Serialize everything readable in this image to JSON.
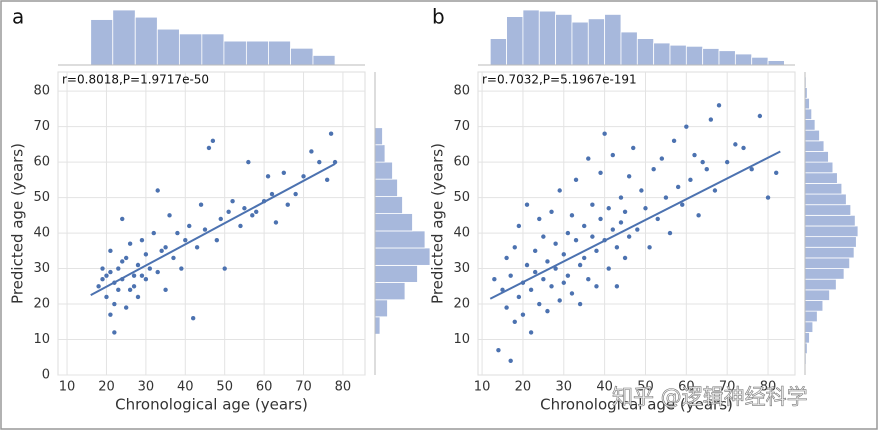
{
  "chart_data": [
    {
      "type": "scatter",
      "panel_label": "a",
      "annotation": "r=0.8018,P=1.9717e-50",
      "x_label": "Chronological age (years)",
      "y_label": "Predicted age (years)",
      "xlim": [
        7.7,
        85.6
      ],
      "ylim": [
        0,
        85.4
      ],
      "xticks": [
        10,
        20,
        30,
        40,
        50,
        60,
        70,
        80
      ],
      "yticks": [
        0,
        10,
        20,
        30,
        40,
        50,
        60,
        70,
        80
      ],
      "grid": true,
      "color": "#4c72b0",
      "x": [
        18,
        19,
        20,
        20,
        21,
        21,
        22,
        22,
        22,
        23,
        23,
        24,
        24,
        25,
        25,
        26,
        26,
        27,
        28,
        28,
        29,
        30,
        30,
        31,
        32,
        33,
        33,
        34,
        35,
        35,
        36,
        37,
        38,
        39,
        40,
        41,
        42,
        43,
        44,
        45,
        46,
        47,
        48,
        49,
        50,
        51,
        52,
        54,
        55,
        56,
        57,
        58,
        60,
        61,
        62,
        63,
        65,
        66,
        68,
        70,
        72,
        74,
        76,
        77,
        78,
        19,
        21,
        24,
        27,
        29
      ],
      "y": [
        25,
        30,
        22,
        28,
        17,
        35,
        26,
        20,
        12,
        30,
        24,
        44,
        27,
        19,
        33,
        24,
        37,
        28,
        31,
        22,
        38,
        27,
        34,
        30,
        40,
        29,
        52,
        35,
        36,
        24,
        45,
        33,
        40,
        30,
        38,
        42,
        16,
        36,
        48,
        41,
        64,
        66,
        38,
        44,
        30,
        46,
        49,
        42,
        47,
        60,
        45,
        46,
        49,
        56,
        51,
        43,
        57,
        48,
        51,
        56,
        63,
        60,
        55,
        68,
        60,
        27,
        29,
        32,
        25,
        28
      ],
      "fit": {
        "x": [
          16,
          78
        ],
        "y": [
          22.5,
          59.5
        ]
      },
      "marginal_x": {
        "bins": [
          16,
          21.6,
          27.3,
          32.9,
          38.5,
          44.2,
          49.8,
          55.5,
          61.1,
          66.7,
          72.4,
          78
        ],
        "counts": [
          38,
          46,
          40,
          30,
          26,
          26,
          20,
          20,
          20,
          14,
          8
        ]
      },
      "marginal_y": {
        "bins": [
          11.5,
          16.4,
          21.2,
          26.1,
          30.9,
          35.8,
          40.6,
          45.5,
          50.3,
          55.2,
          60,
          64.9,
          69.7
        ],
        "counts": [
          4,
          10,
          24,
          34,
          44,
          40,
          30,
          22,
          18,
          14,
          8,
          6
        ]
      }
    },
    {
      "type": "scatter",
      "panel_label": "b",
      "annotation": "r=0.7032,P=5.1967e-191",
      "x_label": "Chronological age (years)",
      "y_label": "Predicted age (years)",
      "xlim": [
        9,
        86.6
      ],
      "ylim": [
        0,
        85.4
      ],
      "xticks": [
        10,
        20,
        30,
        40,
        50,
        60,
        70,
        80
      ],
      "yticks": [
        10,
        20,
        30,
        40,
        50,
        60,
        70,
        80
      ],
      "grid": true,
      "color": "#4c72b0",
      "x": [
        13,
        14,
        15,
        16,
        16,
        17,
        17,
        18,
        18,
        19,
        19,
        20,
        20,
        21,
        21,
        22,
        22,
        23,
        23,
        24,
        24,
        25,
        25,
        26,
        26,
        27,
        27,
        28,
        28,
        29,
        29,
        30,
        30,
        31,
        31,
        32,
        32,
        33,
        33,
        34,
        34,
        35,
        35,
        36,
        36,
        37,
        37,
        38,
        38,
        39,
        39,
        40,
        40,
        41,
        41,
        42,
        42,
        43,
        43,
        44,
        44,
        45,
        45,
        46,
        46,
        47,
        48,
        49,
        50,
        51,
        52,
        53,
        54,
        55,
        56,
        57,
        58,
        59,
        60,
        61,
        62,
        63,
        64,
        65,
        66,
        67,
        68,
        70,
        72,
        74,
        76,
        78,
        80,
        82
      ],
      "y": [
        27,
        7,
        24,
        19,
        33,
        4,
        28,
        15,
        36,
        22,
        42,
        26,
        17,
        31,
        48,
        24,
        12,
        35,
        29,
        20,
        44,
        27,
        39,
        32,
        18,
        46,
        25,
        37,
        30,
        21,
        52,
        34,
        26,
        40,
        28,
        45,
        23,
        38,
        55,
        31,
        20,
        42,
        33,
        61,
        27,
        39,
        48,
        35,
        25,
        44,
        57,
        38,
        68,
        30,
        47,
        41,
        62,
        36,
        25,
        50,
        43,
        46,
        33,
        56,
        39,
        64,
        41,
        52,
        47,
        36,
        58,
        44,
        61,
        50,
        40,
        66,
        53,
        48,
        70,
        55,
        62,
        45,
        60,
        58,
        72,
        52,
        76,
        60,
        65,
        64,
        58,
        73,
        50,
        57
      ],
      "fit": {
        "x": [
          12,
          83
        ],
        "y": [
          21.5,
          63
        ]
      },
      "marginal_x": {
        "bins": [
          12,
          16,
          20,
          24,
          28,
          32,
          36,
          40,
          44,
          48,
          52,
          56,
          60,
          64,
          68,
          72,
          76,
          80,
          84
        ],
        "counts": [
          48,
          88,
          100,
          98,
          92,
          78,
          84,
          92,
          60,
          48,
          40,
          36,
          34,
          30,
          26,
          20,
          14,
          8
        ]
      },
      "marginal_y": {
        "bins": [
          3,
          6,
          9,
          12,
          15,
          18,
          21,
          24,
          27,
          30,
          33,
          36,
          39,
          42,
          45,
          48,
          51,
          54,
          57,
          60,
          63,
          66,
          69,
          72,
          75,
          78,
          81,
          84
        ],
        "counts": [
          2,
          4,
          8,
          14,
          22,
          32,
          44,
          56,
          70,
          80,
          88,
          92,
          95,
          90,
          82,
          74,
          66,
          58,
          50,
          42,
          34,
          26,
          18,
          12,
          8,
          4,
          2
        ]
      }
    }
  ],
  "watermark": "知乎 @逻辑神经科学"
}
